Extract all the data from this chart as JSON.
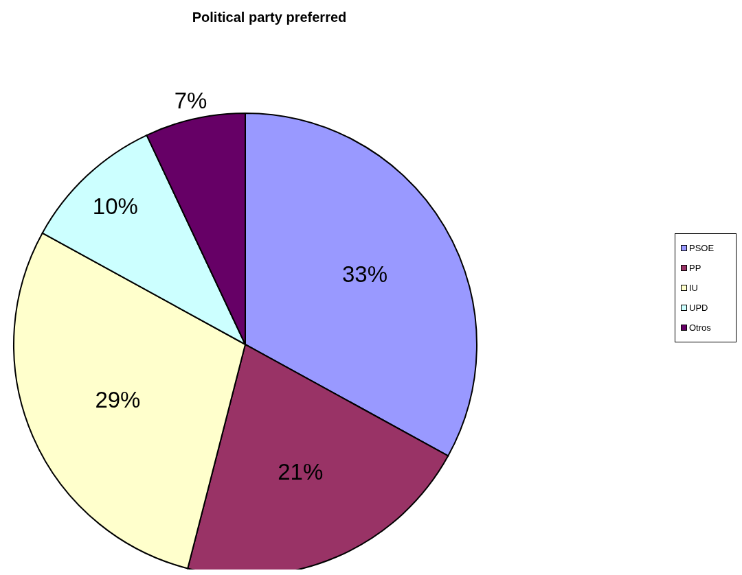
{
  "chart_data": {
    "type": "pie",
    "title": "Political party preferred",
    "categories": [
      "PSOE",
      "PP",
      "IU",
      "UPD",
      "Otros"
    ],
    "values": [
      33,
      21,
      29,
      10,
      7
    ],
    "colors": [
      "#9999ff",
      "#993366",
      "#ffffcc",
      "#ccffff",
      "#660066"
    ],
    "value_labels": [
      "33%",
      "21%",
      "29%",
      "10%",
      "7%"
    ],
    "legend": "right"
  }
}
